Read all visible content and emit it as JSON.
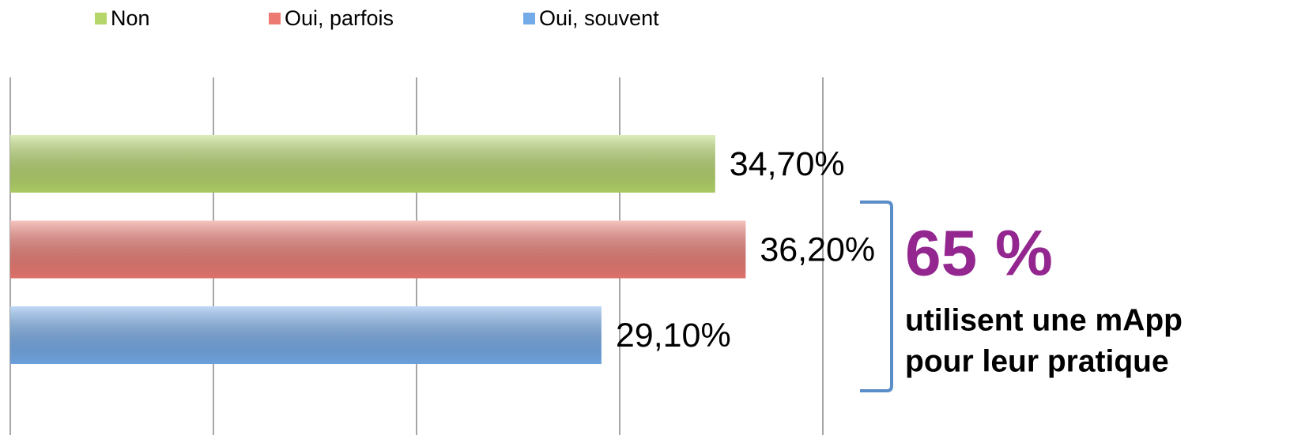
{
  "chart_data": {
    "type": "barh",
    "categories": [
      null
    ],
    "series": [
      {
        "name": "Non",
        "color": "#b5d66a",
        "values": [
          34.7
        ],
        "value_labels": [
          "34,70%"
        ]
      },
      {
        "name": "Oui, parfois",
        "color": "#ec7a72",
        "values": [
          36.2
        ],
        "value_labels": [
          "36,20%"
        ]
      },
      {
        "name": "Oui, souvent",
        "color": "#73aae8",
        "values": [
          29.1
        ],
        "value_labels": [
          "29,10%"
        ]
      }
    ],
    "xlim": [
      0,
      40
    ],
    "xticks": [
      0,
      10,
      20,
      30,
      40
    ],
    "grid": true,
    "legend": "top",
    "annotations": [
      "65 %",
      "utilisent une mApp",
      "pour leur pratique"
    ]
  }
}
